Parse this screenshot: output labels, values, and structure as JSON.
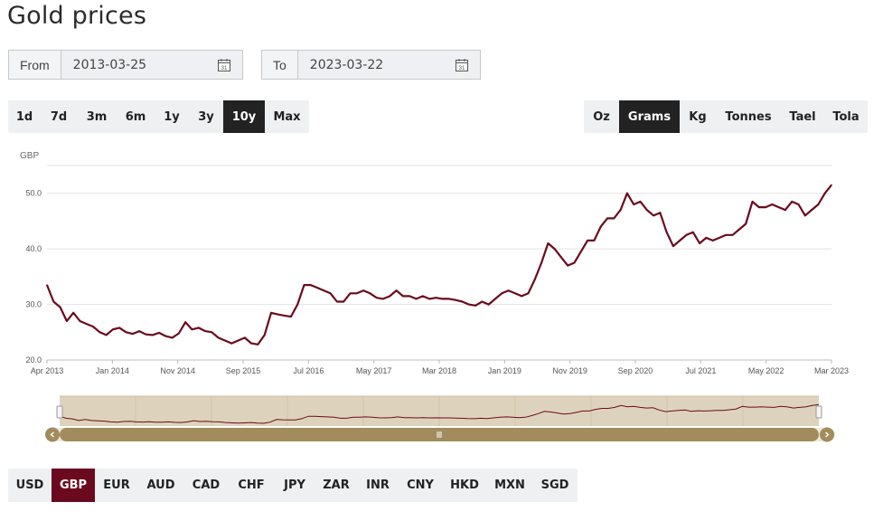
{
  "page_title": "Gold prices",
  "from": {
    "label": "From",
    "value": "2013-03-25"
  },
  "to": {
    "label": "To",
    "value": "2023-03-22"
  },
  "ranges": [
    "1d",
    "7d",
    "3m",
    "6m",
    "1y",
    "3y",
    "10y",
    "Max"
  ],
  "active_range": "10y",
  "units": [
    "Oz",
    "Grams",
    "Kg",
    "Tonnes",
    "Tael",
    "Tola"
  ],
  "active_unit": "Grams",
  "currencies": [
    "USD",
    "GBP",
    "EUR",
    "AUD",
    "CAD",
    "CHF",
    "JPY",
    "ZAR",
    "INR",
    "CNY",
    "HKD",
    "MXN",
    "SGD"
  ],
  "active_currency": "GBP",
  "colors": {
    "line": "#6b0a1e",
    "active_dark": "#222222",
    "navigator_bg": "#ddd3bc",
    "scrollbar": "#a28c5e"
  },
  "icons": {
    "calendar": "calendar-icon",
    "nav_left": "chevron-left-icon",
    "nav_right": "chevron-right-icon",
    "grip": "grip-icon"
  },
  "chart_data": {
    "type": "line",
    "ylabel": "GBP",
    "ylim": [
      20,
      55
    ],
    "yticks": [
      "20.0",
      "30.0",
      "40.0",
      "50.0"
    ],
    "xticks": [
      "Apr 2013",
      "Jan 2014",
      "Nov 2014",
      "Sep 2015",
      "Jul 2016",
      "May 2017",
      "Mar 2018",
      "Jan 2019",
      "Nov 2019",
      "Sep 2020",
      "Jul 2021",
      "May 2022",
      "Mar 2023"
    ],
    "grid": true,
    "legend": "none",
    "series": [
      {
        "x": [
          "2013-04",
          "2013-05",
          "2013-06",
          "2013-07",
          "2013-08",
          "2013-09",
          "2013-10",
          "2013-11",
          "2013-12",
          "2014-01",
          "2014-02",
          "2014-03",
          "2014-04",
          "2014-05",
          "2014-06",
          "2014-07",
          "2014-08",
          "2014-09",
          "2014-10",
          "2014-11",
          "2014-12",
          "2015-01",
          "2015-02",
          "2015-03",
          "2015-04",
          "2015-05",
          "2015-06",
          "2015-07",
          "2015-08",
          "2015-09",
          "2015-10",
          "2015-11",
          "2015-12",
          "2016-01",
          "2016-02",
          "2016-03",
          "2016-04",
          "2016-05",
          "2016-06",
          "2016-07",
          "2016-08",
          "2016-09",
          "2016-10",
          "2016-11",
          "2016-12",
          "2017-01",
          "2017-02",
          "2017-03",
          "2017-04",
          "2017-05",
          "2017-06",
          "2017-07",
          "2017-08",
          "2017-09",
          "2017-10",
          "2017-11",
          "2017-12",
          "2018-01",
          "2018-02",
          "2018-03",
          "2018-04",
          "2018-05",
          "2018-06",
          "2018-07",
          "2018-08",
          "2018-09",
          "2018-10",
          "2018-11",
          "2018-12",
          "2019-01",
          "2019-02",
          "2019-03",
          "2019-04",
          "2019-05",
          "2019-06",
          "2019-07",
          "2019-08",
          "2019-09",
          "2019-10",
          "2019-11",
          "2019-12",
          "2020-01",
          "2020-02",
          "2020-03",
          "2020-04",
          "2020-05",
          "2020-06",
          "2020-07",
          "2020-08",
          "2020-09",
          "2020-10",
          "2020-11",
          "2020-12",
          "2021-01",
          "2021-02",
          "2021-03",
          "2021-04",
          "2021-05",
          "2021-06",
          "2021-07",
          "2021-08",
          "2021-09",
          "2021-10",
          "2021-11",
          "2021-12",
          "2022-01",
          "2022-02",
          "2022-03",
          "2022-04",
          "2022-05",
          "2022-06",
          "2022-07",
          "2022-08",
          "2022-09",
          "2022-10",
          "2022-11",
          "2022-12",
          "2023-01",
          "2023-02",
          "2023-03"
        ],
        "values": [
          33.5,
          30.5,
          29.5,
          27.0,
          28.5,
          27.0,
          26.5,
          26.0,
          25.0,
          24.5,
          25.5,
          25.8,
          25.0,
          24.7,
          25.2,
          24.6,
          24.5,
          24.9,
          24.3,
          24.0,
          24.8,
          26.8,
          25.5,
          25.8,
          25.2,
          25.0,
          24.0,
          23.5,
          23.0,
          23.5,
          24.0,
          23.0,
          22.8,
          24.5,
          28.5,
          28.2,
          28.0,
          27.8,
          30.0,
          33.5,
          33.5,
          33.0,
          32.5,
          32.0,
          30.5,
          30.5,
          32.0,
          32.0,
          32.5,
          32.0,
          31.2,
          31.0,
          31.5,
          32.5,
          31.5,
          31.5,
          31.0,
          31.5,
          31.0,
          31.2,
          31.0,
          31.0,
          30.8,
          30.5,
          30.0,
          29.8,
          30.5,
          30.0,
          31.0,
          32.0,
          32.5,
          32.0,
          31.5,
          32.0,
          34.5,
          37.5,
          41.0,
          40.0,
          38.5,
          37.0,
          37.5,
          39.5,
          41.5,
          41.5,
          44.0,
          45.5,
          45.5,
          47.0,
          50.0,
          48.0,
          48.5,
          47.0,
          46.0,
          46.5,
          43.0,
          40.5,
          41.5,
          42.5,
          43.0,
          41.0,
          42.0,
          41.5,
          42.0,
          42.5,
          42.5,
          43.5,
          44.5,
          48.5,
          47.5,
          47.5,
          48.0,
          47.5,
          47.0,
          48.5,
          48.0,
          46.0,
          47.0,
          48.0,
          50.0,
          51.5
        ]
      }
    ]
  }
}
